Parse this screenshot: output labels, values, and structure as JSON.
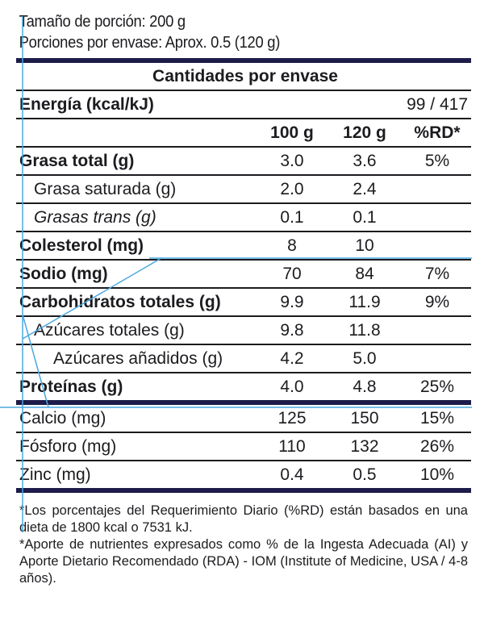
{
  "serving": {
    "size": "Tamaño de porción: 200 g",
    "per_container": "Porciones por envase: Aprox. 0.5 (120 g)"
  },
  "table": {
    "heading": "Cantidades por envase",
    "energy_label": "Energía (kcal/kJ)",
    "energy_value": "99 / 417",
    "columns": [
      "100 g",
      "120 g",
      "%RD*"
    ],
    "rows": [
      {
        "name": "Grasa total (g)",
        "v100": "3.0",
        "v120": "3.6",
        "rd": "5%"
      },
      {
        "name": "Grasa saturada (g)",
        "v100": "2.0",
        "v120": "2.4",
        "rd": ""
      },
      {
        "name": "Grasas trans (g)",
        "v100": "0.1",
        "v120": "0.1",
        "rd": ""
      },
      {
        "name": "Colesterol (mg)",
        "v100": "8",
        "v120": "10",
        "rd": ""
      },
      {
        "name": "Sodio (mg)",
        "v100": "70",
        "v120": "84",
        "rd": "7%"
      },
      {
        "name": "Carbohidratos totales (g)",
        "v100": "9.9",
        "v120": "11.9",
        "rd": "9%"
      },
      {
        "name": "Azúcares totales (g)",
        "v100": "9.8",
        "v120": "11.8",
        "rd": ""
      },
      {
        "name": "Azúcares añadidos (g)",
        "v100": "4.2",
        "v120": "5.0",
        "rd": ""
      },
      {
        "name": "Proteínas (g)",
        "v100": "4.0",
        "v120": "4.8",
        "rd": "25%"
      }
    ],
    "minerals": [
      {
        "name": "Calcio (mg)",
        "v100": "125",
        "v120": "150",
        "rd": "15%"
      },
      {
        "name": "Fósforo (mg)",
        "v100": "110",
        "v120": "132",
        "rd": "26%"
      },
      {
        "name": "Zinc (mg)",
        "v100": "0.4",
        "v120": "0.5",
        "rd": "10%"
      }
    ]
  },
  "footer": {
    "note1": "*Los porcentajes del Requerimiento Diario (%RD) están basados en una dieta de 1800 kcal o 7531 kJ.",
    "note2": "*Aporte de nutrientes expresados como % de la Ingesta Adecuada (AI) y Aporte Dietario Recomendado (RDA) - IOM (Institute of Medicine, USA / 4-8 años)."
  },
  "colors": {
    "guide_lines": "#4aa8e0",
    "rule": "#1c1b4a"
  }
}
